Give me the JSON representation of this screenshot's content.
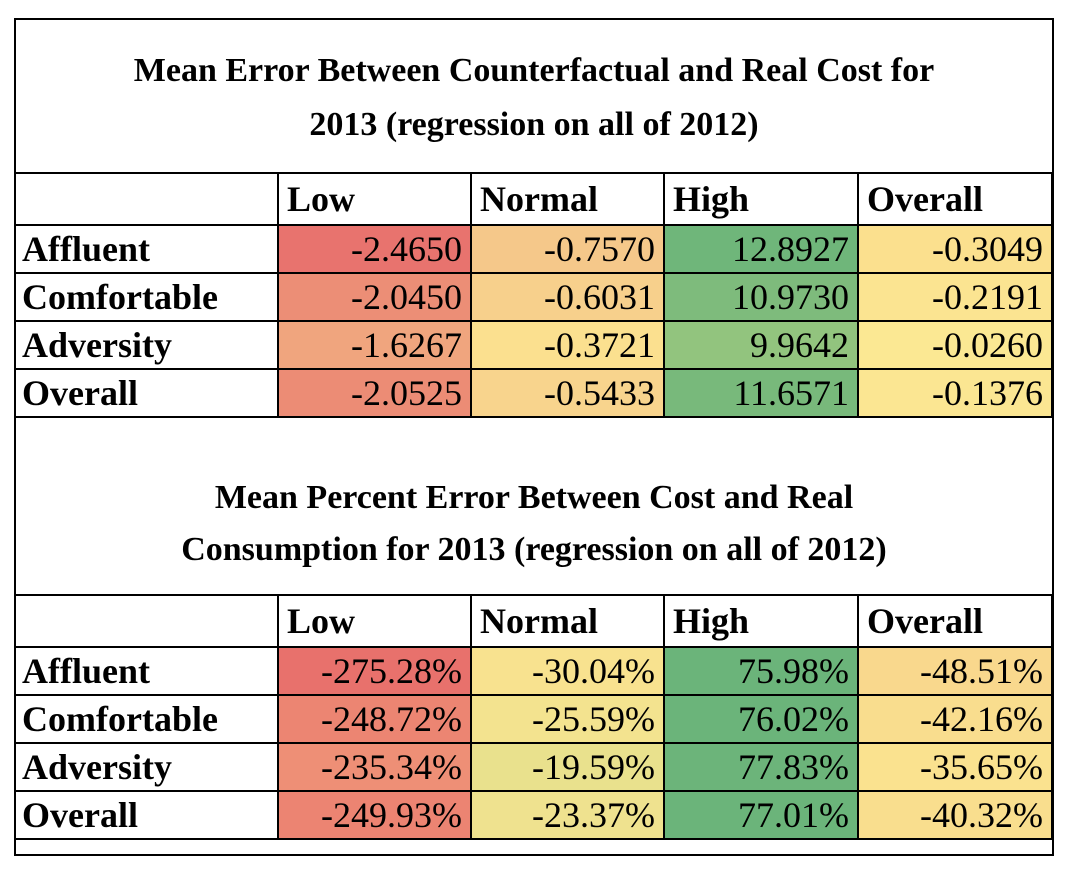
{
  "table1": {
    "title_line1": "Mean Error Between Counterfactual and Real Cost for",
    "title_line2": "2013 (regression on all of 2012)",
    "headers": [
      "Low",
      "Normal",
      "High",
      "Overall"
    ],
    "rows": [
      {
        "label": "Affluent",
        "values": [
          "-2.4650",
          "-0.7570",
          "12.8927",
          "-0.3049"
        ],
        "colors": [
          "#e8736e",
          "#f5c88a",
          "#6fb67a",
          "#fbe08e"
        ]
      },
      {
        "label": "Comfortable",
        "values": [
          "-2.0450",
          "-0.6031",
          "10.9730",
          "-0.2191"
        ],
        "colors": [
          "#ec8e76",
          "#f7d08c",
          "#7ebb7c",
          "#fbe491"
        ]
      },
      {
        "label": "Adversity",
        "values": [
          "-1.6267",
          "-0.3721",
          "9.9642",
          "-0.0260"
        ],
        "colors": [
          "#f0a57e",
          "#fbe08f",
          "#92c47e",
          "#fbe893"
        ]
      },
      {
        "label": "Overall",
        "values": [
          "-2.0525",
          "-0.5433",
          "11.6571",
          "-0.1376"
        ],
        "colors": [
          "#ec8c75",
          "#f8d48d",
          "#78b97b",
          "#fbe692"
        ]
      }
    ]
  },
  "table2": {
    "title_line1": "Mean Percent Error Between Cost and Real",
    "title_line2": "Consumption for 2013 (regression on all of 2012)",
    "headers": [
      "Low",
      "Normal",
      "High",
      "Overall"
    ],
    "rows": [
      {
        "label": "Affluent",
        "values": [
          "-275.28%",
          "-30.04%",
          "75.98%",
          "-48.51%"
        ],
        "colors": [
          "#e8716c",
          "#f8e28f",
          "#6bb47a",
          "#f9d88d"
        ]
      },
      {
        "label": "Comfortable",
        "values": [
          "-248.72%",
          "-25.59%",
          "76.02%",
          "-42.16%"
        ],
        "colors": [
          "#ec8572",
          "#f3e38f",
          "#6bb47a",
          "#f9dd8e"
        ]
      },
      {
        "label": "Adversity",
        "values": [
          "-235.34%",
          "-19.59%",
          "77.83%",
          "-35.65%"
        ],
        "colors": [
          "#ee8f76",
          "#e9e18d",
          "#6cb47a",
          "#fae28f"
        ]
      },
      {
        "label": "Overall",
        "values": [
          "-249.93%",
          "-23.37%",
          "77.01%",
          "-40.32%"
        ],
        "colors": [
          "#ec8472",
          "#efe28f",
          "#6bb47a",
          "#f9de8e"
        ]
      }
    ]
  }
}
